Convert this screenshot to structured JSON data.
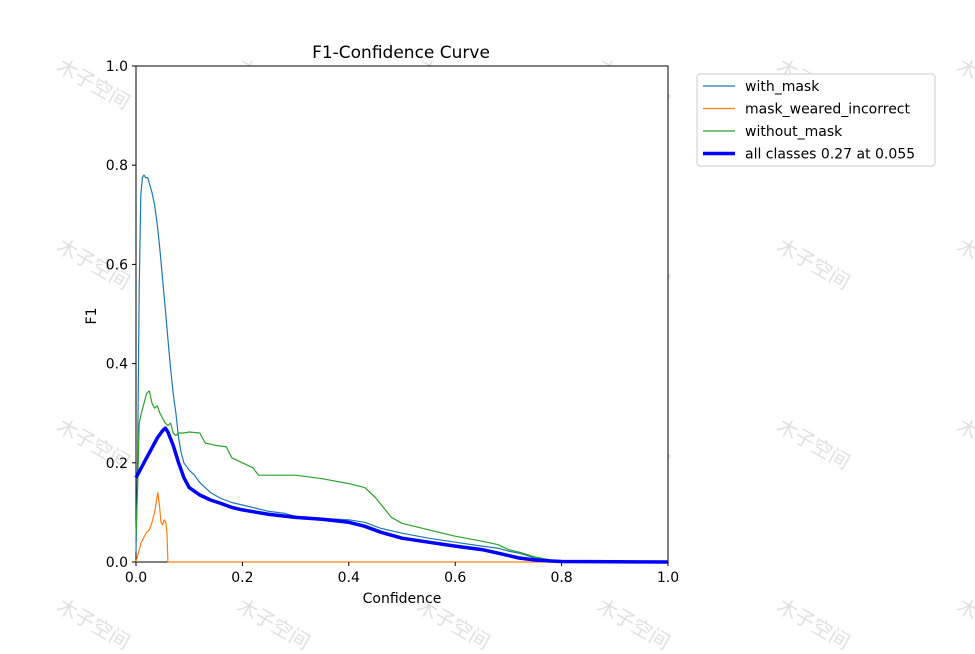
{
  "chart_data": {
    "type": "line",
    "title": "F1-Confidence Curve",
    "xlabel": "Confidence",
    "ylabel": "F1",
    "xlim": [
      0,
      1
    ],
    "ylim": [
      0,
      1
    ],
    "xticks": [
      "0.0",
      "0.2",
      "0.4",
      "0.6",
      "0.8",
      "1.0"
    ],
    "yticks": [
      "0.0",
      "0.2",
      "0.4",
      "0.6",
      "0.8",
      "1.0"
    ],
    "grid": false,
    "legend_position": "outside-top-right",
    "series": [
      {
        "name": "with_mask",
        "color": "#1f77b4",
        "width": 1.2,
        "points": [
          [
            0,
            0.02
          ],
          [
            0.003,
            0.2
          ],
          [
            0.006,
            0.55
          ],
          [
            0.009,
            0.74
          ],
          [
            0.012,
            0.775
          ],
          [
            0.015,
            0.78
          ],
          [
            0.018,
            0.775
          ],
          [
            0.022,
            0.775
          ],
          [
            0.026,
            0.76
          ],
          [
            0.03,
            0.745
          ],
          [
            0.035,
            0.72
          ],
          [
            0.04,
            0.68
          ],
          [
            0.045,
            0.63
          ],
          [
            0.05,
            0.57
          ],
          [
            0.055,
            0.51
          ],
          [
            0.06,
            0.45
          ],
          [
            0.065,
            0.39
          ],
          [
            0.07,
            0.34
          ],
          [
            0.075,
            0.3
          ],
          [
            0.08,
            0.25
          ],
          [
            0.085,
            0.22
          ],
          [
            0.09,
            0.2
          ],
          [
            0.1,
            0.185
          ],
          [
            0.11,
            0.175
          ],
          [
            0.12,
            0.16
          ],
          [
            0.14,
            0.14
          ],
          [
            0.16,
            0.128
          ],
          [
            0.18,
            0.12
          ],
          [
            0.2,
            0.115
          ],
          [
            0.25,
            0.102
          ],
          [
            0.28,
            0.098
          ],
          [
            0.3,
            0.092
          ],
          [
            0.35,
            0.088
          ],
          [
            0.4,
            0.085
          ],
          [
            0.43,
            0.08
          ],
          [
            0.46,
            0.068
          ],
          [
            0.5,
            0.058
          ],
          [
            0.55,
            0.048
          ],
          [
            0.6,
            0.04
          ],
          [
            0.65,
            0.032
          ],
          [
            0.68,
            0.028
          ],
          [
            0.7,
            0.022
          ],
          [
            0.72,
            0.018
          ],
          [
            0.75,
            0.008
          ],
          [
            0.78,
            0.003
          ],
          [
            0.8,
            0.002
          ],
          [
            0.9,
            0.001
          ],
          [
            1,
            0
          ]
        ]
      },
      {
        "name": "mask_weared_incorrect",
        "color": "#ff7f0e",
        "width": 1.2,
        "points": [
          [
            0,
            0
          ],
          [
            0.005,
            0.02
          ],
          [
            0.01,
            0.04
          ],
          [
            0.015,
            0.05
          ],
          [
            0.02,
            0.06
          ],
          [
            0.025,
            0.065
          ],
          [
            0.03,
            0.08
          ],
          [
            0.035,
            0.1
          ],
          [
            0.038,
            0.12
          ],
          [
            0.041,
            0.14
          ],
          [
            0.044,
            0.115
          ],
          [
            0.047,
            0.08
          ],
          [
            0.05,
            0.075
          ],
          [
            0.053,
            0.085
          ],
          [
            0.056,
            0.08
          ],
          [
            0.058,
            0.06
          ],
          [
            0.06,
            0.0
          ],
          [
            0.1,
            0
          ],
          [
            0.5,
            0
          ],
          [
            1,
            0
          ]
        ]
      },
      {
        "name": "without_mask",
        "color": "#2ca02c",
        "width": 1.2,
        "points": [
          [
            0,
            0.05
          ],
          [
            0.003,
            0.15
          ],
          [
            0.006,
            0.28
          ],
          [
            0.01,
            0.3
          ],
          [
            0.015,
            0.32
          ],
          [
            0.02,
            0.34
          ],
          [
            0.025,
            0.345
          ],
          [
            0.03,
            0.32
          ],
          [
            0.035,
            0.31
          ],
          [
            0.04,
            0.315
          ],
          [
            0.045,
            0.3
          ],
          [
            0.05,
            0.29
          ],
          [
            0.055,
            0.28
          ],
          [
            0.06,
            0.275
          ],
          [
            0.065,
            0.28
          ],
          [
            0.07,
            0.26
          ],
          [
            0.075,
            0.255
          ],
          [
            0.08,
            0.26
          ],
          [
            0.09,
            0.26
          ],
          [
            0.1,
            0.262
          ],
          [
            0.12,
            0.26
          ],
          [
            0.13,
            0.24
          ],
          [
            0.15,
            0.235
          ],
          [
            0.17,
            0.232
          ],
          [
            0.18,
            0.21
          ],
          [
            0.2,
            0.2
          ],
          [
            0.22,
            0.19
          ],
          [
            0.23,
            0.175
          ],
          [
            0.26,
            0.175
          ],
          [
            0.3,
            0.175
          ],
          [
            0.35,
            0.168
          ],
          [
            0.4,
            0.158
          ],
          [
            0.43,
            0.15
          ],
          [
            0.45,
            0.13
          ],
          [
            0.48,
            0.09
          ],
          [
            0.5,
            0.078
          ],
          [
            0.55,
            0.065
          ],
          [
            0.6,
            0.052
          ],
          [
            0.65,
            0.042
          ],
          [
            0.68,
            0.035
          ],
          [
            0.7,
            0.025
          ],
          [
            0.72,
            0.02
          ],
          [
            0.75,
            0.01
          ],
          [
            0.78,
            0.004
          ],
          [
            0.8,
            0.002
          ],
          [
            0.9,
            0.001
          ],
          [
            1,
            0
          ]
        ]
      },
      {
        "name": "all classes 0.27 at 0.055",
        "color": "#0000ff",
        "width": 3.5,
        "points": [
          [
            0,
            0.17
          ],
          [
            0.01,
            0.19
          ],
          [
            0.02,
            0.21
          ],
          [
            0.03,
            0.23
          ],
          [
            0.04,
            0.25
          ],
          [
            0.05,
            0.265
          ],
          [
            0.055,
            0.27
          ],
          [
            0.06,
            0.262
          ],
          [
            0.07,
            0.235
          ],
          [
            0.08,
            0.2
          ],
          [
            0.09,
            0.17
          ],
          [
            0.1,
            0.15
          ],
          [
            0.12,
            0.135
          ],
          [
            0.14,
            0.125
          ],
          [
            0.16,
            0.118
          ],
          [
            0.18,
            0.11
          ],
          [
            0.2,
            0.105
          ],
          [
            0.25,
            0.096
          ],
          [
            0.3,
            0.09
          ],
          [
            0.35,
            0.086
          ],
          [
            0.4,
            0.08
          ],
          [
            0.43,
            0.072
          ],
          [
            0.46,
            0.06
          ],
          [
            0.5,
            0.048
          ],
          [
            0.55,
            0.04
          ],
          [
            0.6,
            0.032
          ],
          [
            0.65,
            0.025
          ],
          [
            0.68,
            0.018
          ],
          [
            0.7,
            0.013
          ],
          [
            0.72,
            0.008
          ],
          [
            0.75,
            0.004
          ],
          [
            0.78,
            0.002
          ],
          [
            0.8,
            0.001
          ],
          [
            0.9,
            0.0005
          ],
          [
            1,
            0
          ]
        ]
      }
    ]
  },
  "watermark": {
    "text": "木子空间",
    "color": "#c8c8c8"
  }
}
